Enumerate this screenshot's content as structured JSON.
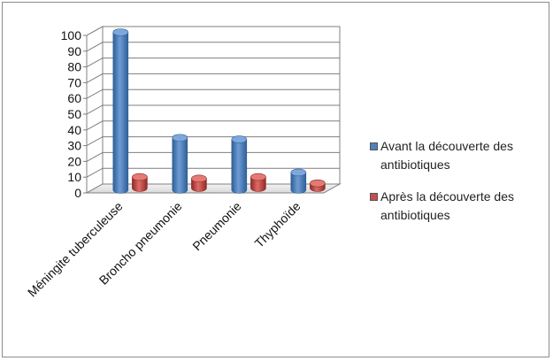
{
  "chart_data": {
    "type": "bar",
    "categories": [
      "Méningite tuberculeuse",
      "Broncho pneumonie",
      "Pneumonie",
      "Thyphoïde"
    ],
    "series": [
      {
        "name": "Avant la découverte des antibiotiques",
        "values": [
          100,
          33,
          32,
          11
        ],
        "color": "#4f81bd"
      },
      {
        "name": "Après la découverte des antibiotiques",
        "values": [
          7,
          6,
          7,
          3
        ],
        "color": "#c0504d"
      }
    ],
    "yticks": [
      "0",
      "10",
      "20",
      "30",
      "40",
      "50",
      "60",
      "70",
      "80",
      "90",
      "100"
    ],
    "ylim": [
      0,
      100
    ],
    "grid": true,
    "legend_position": "right",
    "three_d": true
  }
}
